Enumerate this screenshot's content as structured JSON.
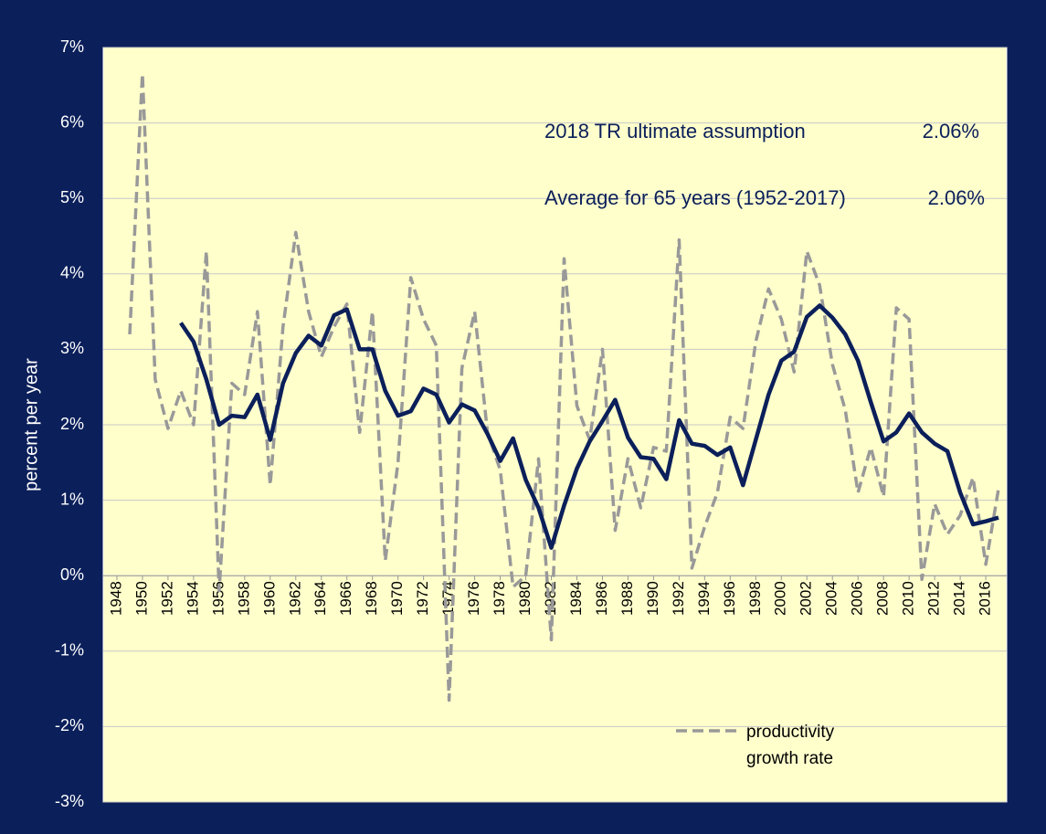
{
  "chart_data": {
    "type": "line",
    "y_label": "percent per year",
    "x": [
      1949,
      1950,
      1951,
      1952,
      1953,
      1954,
      1955,
      1956,
      1957,
      1958,
      1959,
      1960,
      1961,
      1962,
      1963,
      1964,
      1965,
      1966,
      1967,
      1968,
      1969,
      1970,
      1971,
      1972,
      1973,
      1974,
      1975,
      1976,
      1977,
      1978,
      1979,
      1980,
      1981,
      1982,
      1983,
      1984,
      1985,
      1986,
      1987,
      1988,
      1989,
      1990,
      1991,
      1992,
      1993,
      1994,
      1995,
      1996,
      1997,
      1998,
      1999,
      2000,
      2001,
      2002,
      2003,
      2004,
      2005,
      2006,
      2007,
      2008,
      2009,
      2010,
      2011,
      2012,
      2013,
      2014,
      2015,
      2016,
      2017
    ],
    "series": [
      {
        "name": "productivity growth rate",
        "color": "#999999",
        "dashed": true,
        "values": [
          3.2,
          6.65,
          2.6,
          1.95,
          2.45,
          2.0,
          4.3,
          -0.2,
          2.55,
          2.4,
          3.5,
          1.2,
          3.3,
          4.55,
          3.5,
          2.9,
          3.3,
          3.6,
          1.9,
          3.5,
          0.2,
          1.5,
          3.95,
          3.4,
          3.05,
          -1.65,
          2.75,
          3.5,
          1.9,
          1.4,
          -0.15,
          0.0,
          1.55,
          -0.85,
          4.2,
          2.25,
          1.8,
          3.0,
          0.6,
          1.55,
          0.9,
          1.7,
          1.65,
          4.45,
          0.1,
          0.65,
          1.1,
          2.1,
          1.95,
          3.1,
          3.8,
          3.4,
          2.7,
          4.3,
          3.85,
          2.8,
          2.2,
          1.1,
          1.7,
          1.05,
          3.55,
          3.4,
          -0.05,
          0.95,
          0.55,
          0.8,
          1.3,
          0.15,
          1.15
        ]
      },
      {
        "color": "#0b1f5a",
        "dashed": false,
        "values": [
          null,
          null,
          null,
          null,
          3.35,
          3.1,
          2.6,
          2.0,
          2.12,
          2.1,
          2.4,
          1.8,
          2.55,
          2.95,
          3.18,
          3.05,
          3.45,
          3.53,
          3.0,
          3.0,
          2.45,
          2.12,
          2.18,
          2.48,
          2.4,
          2.03,
          2.27,
          2.19,
          1.88,
          1.52,
          1.82,
          1.27,
          0.9,
          0.37,
          0.93,
          1.42,
          1.78,
          2.05,
          2.33,
          1.83,
          1.57,
          1.55,
          1.28,
          2.06,
          1.75,
          1.72,
          1.6,
          1.7,
          1.2,
          1.8,
          2.4,
          2.85,
          2.97,
          3.43,
          3.58,
          3.42,
          3.2,
          2.85,
          2.3,
          1.78,
          1.9,
          2.15,
          1.9,
          1.75,
          1.65,
          1.1,
          0.68,
          0.72,
          0.77
        ]
      }
    ],
    "xlim": [
      1946.93,
      2017.64
    ],
    "xticks": [
      1948,
      1950,
      1952,
      1954,
      1956,
      1958,
      1960,
      1962,
      1964,
      1966,
      1968,
      1970,
      1972,
      1974,
      1976,
      1978,
      1980,
      1982,
      1984,
      1986,
      1988,
      1990,
      1992,
      1994,
      1996,
      1998,
      2000,
      2002,
      2004,
      2006,
      2008,
      2010,
      2012,
      2014,
      2016
    ],
    "ylim": [
      -3,
      7
    ],
    "yticks": [
      {
        "value": -3,
        "label": "-3%"
      },
      {
        "value": -2,
        "label": "-2%"
      },
      {
        "value": -1,
        "label": "-1%"
      },
      {
        "value": 0,
        "label": "0%"
      },
      {
        "value": 1,
        "label": "1%"
      },
      {
        "value": 2,
        "label": "2%"
      },
      {
        "value": 3,
        "label": "3%"
      },
      {
        "value": 4,
        "label": "4%"
      },
      {
        "value": 5,
        "label": "5%"
      },
      {
        "value": 6,
        "label": "6%"
      },
      {
        "value": 7,
        "label": "7%"
      }
    ],
    "grid": true,
    "annotations": [
      "2018 TR ultimate assumption",
      "2.06%",
      "Average for 65 years (1952-2017)",
      "2.06%"
    ]
  }
}
